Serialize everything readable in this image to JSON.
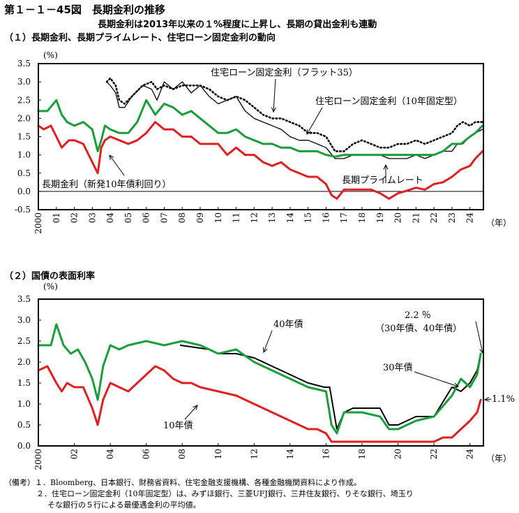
{
  "figure": {
    "title": "第１－１－45図　長期金利の推移",
    "subtitle": "長期金利は2013年以来の１%程度に上昇し、長期の貸出金利も連動"
  },
  "notes": {
    "head": "（備考）",
    "item1": "１．Bloomberg、日本銀行、財務省資料、住宅金融支援機構、各種金融機関資料により作成。",
    "item2a": "２．住宅ローン固定金利（10年固定型）は、みずほ銀行、三菱UFJ銀行、三井住友銀行、りそな銀行、埼玉り",
    "item2b": "そな銀行の５行による最優遇金利の平均値。"
  },
  "colors": {
    "green": "#1a9e3a",
    "red": "#e02020",
    "black": "#000000"
  },
  "chart_data": [
    {
      "type": "line",
      "title": "（１）長期金利、長期プライムレート、住宅ローン固定金利の動向",
      "ylabel": "(%)",
      "xunit": "（年）",
      "xlim": [
        2000,
        2024.75
      ],
      "ylim": [
        -0.5,
        3.5
      ],
      "yticks": [
        "3.5",
        "3.0",
        "2.5",
        "2.0",
        "1.5",
        "1.0",
        "0.5",
        "0.0",
        "-0.5"
      ],
      "xticks": [
        "2000",
        "01",
        "02",
        "03",
        "04",
        "05",
        "06",
        "07",
        "08",
        "09",
        "10",
        "11",
        "12",
        "13",
        "14",
        "15",
        "16",
        "17",
        "18",
        "19",
        "20",
        "21",
        "22",
        "23",
        "24"
      ],
      "annotations": [
        "住宅ローン固定金利（フラット35）",
        "住宅ローン固定金利（10年固定型）",
        "長期プライムレート",
        "長期金利（新発10年債利回り）"
      ],
      "series": [
        {
          "name": "住宅ローン固定金利（フラット35）",
          "color": "black",
          "style": "dotted",
          "x": [
            2003.8,
            2004.0,
            2004.3,
            2004.5,
            2004.8,
            2005.2,
            2005.8,
            2006.3,
            2006.6,
            2007.0,
            2007.5,
            2008.0,
            2008.5,
            2009.0,
            2009.5,
            2010.0,
            2010.5,
            2011.0,
            2011.5,
            2012.0,
            2012.5,
            2013.0,
            2013.5,
            2014.0,
            2014.5,
            2015.0,
            2015.5,
            2016.0,
            2016.5,
            2017.0,
            2017.5,
            2018.0,
            2018.5,
            2019.0,
            2019.5,
            2020.0,
            2020.5,
            2021.0,
            2021.5,
            2022.0,
            2022.5,
            2023.0,
            2023.3,
            2023.6,
            2024.0,
            2024.3,
            2024.7
          ],
          "y": [
            3.0,
            3.1,
            2.9,
            2.5,
            2.4,
            2.6,
            2.9,
            3.0,
            2.8,
            2.9,
            2.8,
            2.9,
            2.9,
            2.9,
            2.8,
            2.6,
            2.5,
            2.6,
            2.5,
            2.3,
            2.1,
            2.0,
            2.0,
            1.9,
            1.8,
            1.6,
            1.6,
            1.5,
            1.1,
            1.1,
            1.3,
            1.4,
            1.3,
            1.2,
            1.2,
            1.3,
            1.3,
            1.4,
            1.3,
            1.4,
            1.5,
            1.6,
            1.8,
            1.9,
            1.8,
            1.9,
            1.9
          ]
        },
        {
          "name": "住宅ローン固定金利（10年固定型）",
          "color": "black",
          "style": "solid",
          "x": [
            2003.8,
            2004.0,
            2004.3,
            2004.5,
            2004.8,
            2005.2,
            2005.8,
            2006.3,
            2006.6,
            2007.0,
            2007.5,
            2008.0,
            2008.5,
            2009.0,
            2009.5,
            2010.0,
            2010.5,
            2011.0,
            2011.5,
            2012.0,
            2012.5,
            2013.0,
            2013.5,
            2014.0,
            2014.5,
            2015.0,
            2015.5,
            2016.0,
            2016.5,
            2017.0,
            2017.5,
            2018.0,
            2018.5,
            2019.0,
            2019.5,
            2020.0,
            2020.5,
            2021.0,
            2021.5,
            2022.0,
            2022.5,
            2023.0,
            2023.3,
            2023.6,
            2024.0,
            2024.3,
            2024.7
          ],
          "y": [
            3.0,
            2.9,
            2.7,
            2.3,
            2.3,
            2.6,
            2.9,
            2.8,
            2.5,
            3.0,
            2.8,
            3.0,
            2.7,
            2.9,
            2.6,
            2.4,
            2.5,
            2.6,
            2.2,
            2.0,
            1.9,
            1.8,
            1.7,
            1.5,
            1.4,
            1.4,
            1.3,
            1.2,
            0.9,
            0.9,
            1.0,
            1.0,
            1.0,
            1.0,
            0.9,
            0.9,
            0.9,
            1.0,
            0.9,
            1.0,
            1.1,
            1.1,
            1.3,
            1.3,
            1.5,
            1.6,
            1.7
          ]
        },
        {
          "name": "長期プライムレート",
          "color": "green",
          "style": "solid",
          "x": [
            2000.0,
            2000.5,
            2001.0,
            2001.3,
            2001.6,
            2002.0,
            2002.5,
            2003.0,
            2003.3,
            2003.5,
            2003.7,
            2004.0,
            2004.5,
            2005.0,
            2005.5,
            2006.0,
            2006.5,
            2007.0,
            2007.5,
            2008.0,
            2008.5,
            2009.0,
            2009.5,
            2010.0,
            2010.5,
            2011.0,
            2011.5,
            2012.0,
            2012.5,
            2013.0,
            2013.5,
            2014.0,
            2014.5,
            2015.0,
            2015.5,
            2016.0,
            2016.5,
            2017.0,
            2018.0,
            2019.0,
            2020.0,
            2021.0,
            2022.0,
            2022.5,
            2023.0,
            2023.5,
            2024.0,
            2024.3,
            2024.7
          ],
          "y": [
            2.2,
            2.2,
            2.5,
            2.1,
            1.9,
            1.8,
            1.9,
            1.7,
            1.1,
            1.4,
            1.8,
            1.7,
            1.6,
            1.6,
            1.9,
            2.5,
            2.1,
            2.4,
            2.3,
            2.1,
            2.2,
            2.0,
            1.8,
            1.6,
            1.6,
            1.7,
            1.5,
            1.4,
            1.3,
            1.3,
            1.2,
            1.2,
            1.1,
            1.1,
            1.1,
            1.0,
            0.95,
            1.0,
            1.0,
            1.0,
            1.0,
            1.0,
            1.0,
            1.1,
            1.3,
            1.3,
            1.5,
            1.6,
            1.8
          ]
        },
        {
          "name": "長期金利（新発10年債利回り）",
          "color": "red",
          "style": "solid",
          "x": [
            2000.0,
            2000.3,
            2000.7,
            2001.0,
            2001.3,
            2001.7,
            2002.0,
            2002.5,
            2003.0,
            2003.3,
            2003.5,
            2003.7,
            2004.0,
            2004.5,
            2005.0,
            2005.5,
            2006.0,
            2006.5,
            2007.0,
            2007.5,
            2008.0,
            2008.5,
            2009.0,
            2009.5,
            2010.0,
            2010.5,
            2011.0,
            2011.5,
            2012.0,
            2012.5,
            2013.0,
            2013.5,
            2014.0,
            2014.5,
            2015.0,
            2015.5,
            2016.0,
            2016.3,
            2016.6,
            2017.0,
            2017.5,
            2018.0,
            2018.5,
            2019.0,
            2019.5,
            2020.0,
            2020.5,
            2021.0,
            2021.5,
            2022.0,
            2022.5,
            2023.0,
            2023.5,
            2024.0,
            2024.3,
            2024.7
          ],
          "y": [
            1.8,
            1.7,
            1.8,
            1.5,
            1.2,
            1.4,
            1.4,
            1.3,
            0.8,
            0.5,
            1.2,
            1.4,
            1.5,
            1.4,
            1.3,
            1.4,
            1.6,
            1.9,
            1.7,
            1.7,
            1.5,
            1.5,
            1.3,
            1.3,
            1.3,
            1.0,
            1.2,
            1.0,
            1.0,
            0.8,
            0.7,
            0.8,
            0.6,
            0.5,
            0.4,
            0.4,
            0.2,
            -0.1,
            -0.2,
            0.05,
            0.05,
            0.05,
            0.05,
            -0.05,
            -0.2,
            -0.05,
            0.02,
            0.1,
            0.05,
            0.2,
            0.25,
            0.4,
            0.6,
            0.7,
            0.9,
            1.1
          ]
        }
      ]
    },
    {
      "type": "line",
      "title": "（２）国債の表面利率",
      "ylabel": "(%)",
      "xunit": "（年）",
      "xlim": [
        2000,
        2024.75
      ],
      "ylim": [
        0.0,
        3.5
      ],
      "yticks": [
        "3.5",
        "3.0",
        "2.5",
        "2.0",
        "1.5",
        "1.0",
        "0.5",
        "0.0"
      ],
      "xticks": [
        "2000",
        "02",
        "04",
        "06",
        "08",
        "10",
        "12",
        "14",
        "16",
        "18",
        "20",
        "22",
        "24"
      ],
      "annotations": [
        "40年債",
        "30年債",
        "10年債",
        "2.2 ％",
        "（30年債、40年債）",
        "1.1%"
      ],
      "series": [
        {
          "name": "40年債",
          "color": "black",
          "style": "solid",
          "x": [
            2007.9,
            2009.5,
            2010.0,
            2011.0,
            2012.0,
            2013.0,
            2014.0,
            2015.0,
            2015.9,
            2016.2,
            2016.6,
            2017.0,
            2017.5,
            2018.0,
            2019.0,
            2019.5,
            2020.0,
            2021.0,
            2022.0,
            2023.0,
            2023.5,
            2024.0,
            2024.4,
            2024.6
          ],
          "y": [
            2.4,
            2.3,
            2.2,
            2.2,
            2.1,
            1.9,
            1.7,
            1.5,
            1.4,
            1.4,
            0.4,
            0.8,
            0.9,
            0.9,
            0.9,
            0.5,
            0.5,
            0.7,
            0.7,
            1.4,
            1.3,
            1.5,
            1.8,
            2.2
          ]
        },
        {
          "name": "30年債",
          "color": "green",
          "style": "solid",
          "x": [
            2000.0,
            2000.7,
            2001.0,
            2001.4,
            2001.8,
            2002.2,
            2002.6,
            2003.0,
            2003.3,
            2003.6,
            2004.0,
            2004.5,
            2005.0,
            2006.0,
            2007.0,
            2008.0,
            2009.0,
            2010.0,
            2011.0,
            2012.0,
            2013.0,
            2014.0,
            2015.0,
            2016.0,
            2016.3,
            2016.6,
            2017.0,
            2018.0,
            2019.0,
            2019.5,
            2020.0,
            2021.0,
            2022.0,
            2023.0,
            2023.5,
            2024.0,
            2024.4,
            2024.6
          ],
          "y": [
            2.4,
            2.4,
            2.9,
            2.4,
            2.2,
            2.3,
            2.0,
            1.6,
            1.1,
            1.9,
            2.4,
            2.3,
            2.4,
            2.5,
            2.4,
            2.5,
            2.4,
            2.2,
            2.3,
            2.0,
            1.8,
            1.6,
            1.4,
            1.3,
            0.5,
            0.3,
            0.8,
            0.8,
            0.7,
            0.4,
            0.4,
            0.6,
            0.7,
            1.2,
            1.6,
            1.4,
            1.7,
            2.2
          ]
        },
        {
          "name": "10年債",
          "color": "red",
          "style": "solid",
          "x": [
            2000.0,
            2000.5,
            2001.0,
            2001.3,
            2001.6,
            2002.0,
            2002.5,
            2003.0,
            2003.3,
            2003.6,
            2004.0,
            2004.5,
            2005.0,
            2005.5,
            2006.0,
            2006.5,
            2007.0,
            2007.5,
            2008.0,
            2008.5,
            2009.0,
            2010.0,
            2011.0,
            2012.0,
            2013.0,
            2014.0,
            2015.0,
            2015.5,
            2016.0,
            2016.3,
            2017.0,
            2018.0,
            2019.0,
            2020.0,
            2021.0,
            2022.0,
            2022.5,
            2023.0,
            2023.5,
            2024.0,
            2024.4,
            2024.6
          ],
          "y": [
            1.8,
            1.9,
            1.5,
            1.3,
            1.5,
            1.4,
            1.4,
            0.9,
            0.5,
            1.1,
            1.5,
            1.4,
            1.3,
            1.5,
            1.7,
            1.9,
            1.8,
            1.6,
            1.5,
            1.5,
            1.4,
            1.3,
            1.2,
            1.0,
            0.8,
            0.6,
            0.4,
            0.4,
            0.3,
            0.1,
            0.1,
            0.1,
            0.1,
            0.1,
            0.1,
            0.1,
            0.2,
            0.2,
            0.4,
            0.6,
            0.8,
            1.1
          ]
        }
      ]
    }
  ]
}
